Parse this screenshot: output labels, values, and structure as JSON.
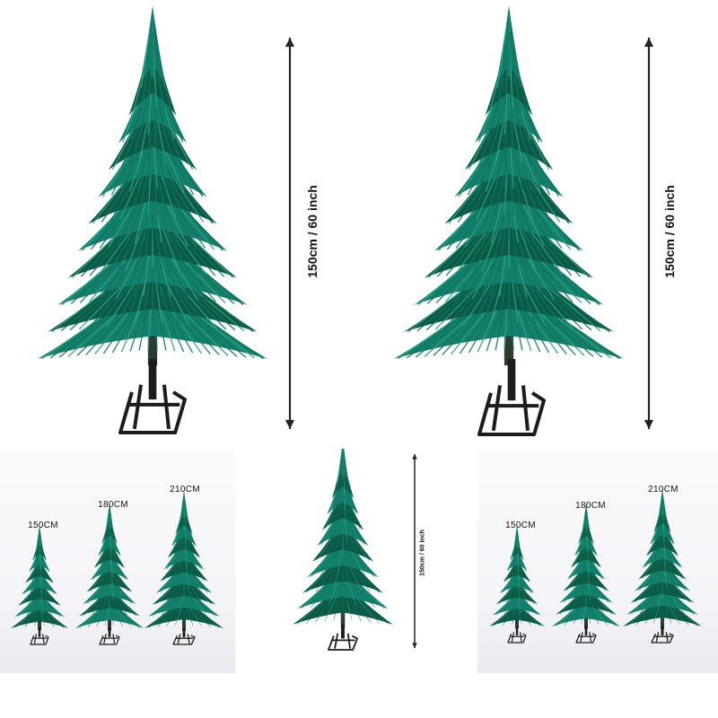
{
  "colors": {
    "foliage_dark": "#0a5a47",
    "foliage_mid": "#12806a",
    "foliage_light": "#2fa184",
    "stand": "#1c1c1c",
    "measure_line": "#222222"
  },
  "icons": [
    "christmas-tree-icon",
    "tree-stand-icon",
    "height-arrow-icon"
  ],
  "top_left": {
    "height_label": "150cm / 60 inch"
  },
  "top_right": {
    "height_label": "150cm / 60 inch"
  },
  "bottom_center": {
    "height_label": "150cm / 60 inch"
  },
  "bottom_left": {
    "sizes": [
      "150CM",
      "180CM",
      "210CM"
    ]
  },
  "bottom_right": {
    "sizes": [
      "150CM",
      "180CM",
      "210CM"
    ]
  }
}
